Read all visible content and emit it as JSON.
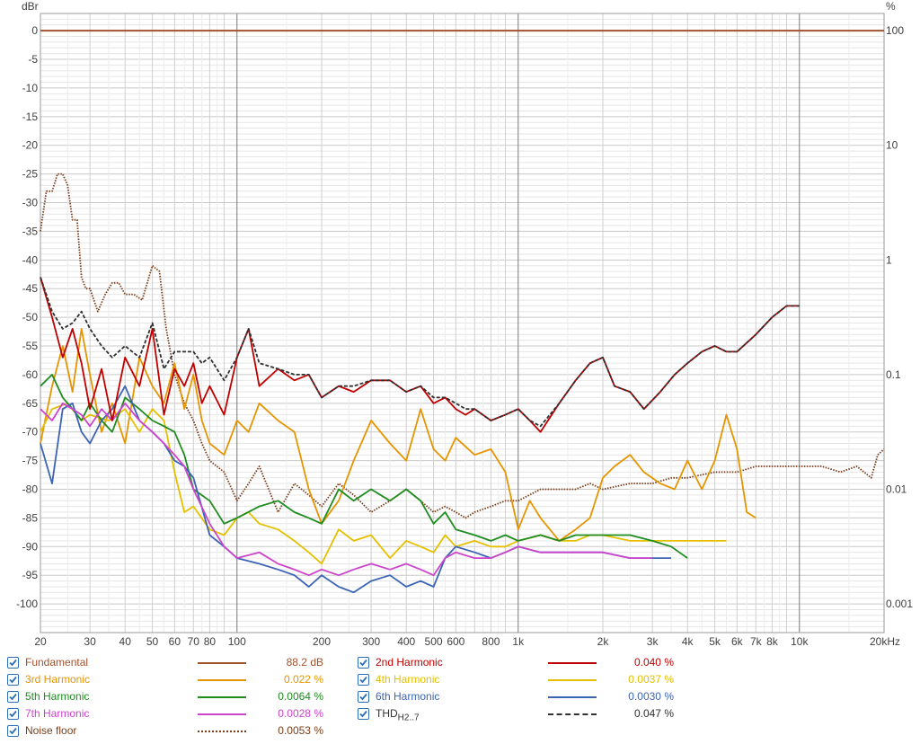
{
  "chart_data": {
    "type": "line",
    "xscale": "log",
    "xlim": [
      20,
      20000
    ],
    "ylim": [
      -105,
      3
    ],
    "y_unit_left": "dBr",
    "y_unit_right": "%",
    "x_tick_labels": [
      {
        "v": 20,
        "t": "20"
      },
      {
        "v": 30,
        "t": "30"
      },
      {
        "v": 40,
        "t": "40"
      },
      {
        "v": 50,
        "t": "50"
      },
      {
        "v": 60,
        "t": "60"
      },
      {
        "v": 70,
        "t": "70"
      },
      {
        "v": 80,
        "t": "80"
      },
      {
        "v": 100,
        "t": "100"
      },
      {
        "v": 200,
        "t": "200"
      },
      {
        "v": 300,
        "t": "300"
      },
      {
        "v": 400,
        "t": "400"
      },
      {
        "v": 500,
        "t": "500"
      },
      {
        "v": 600,
        "t": "600"
      },
      {
        "v": 800,
        "t": "800"
      },
      {
        "v": 1000,
        "t": "1k"
      },
      {
        "v": 2000,
        "t": "2k"
      },
      {
        "v": 3000,
        "t": "3k"
      },
      {
        "v": 4000,
        "t": "4k"
      },
      {
        "v": 5000,
        "t": "5k"
      },
      {
        "v": 6000,
        "t": "6k"
      },
      {
        "v": 7000,
        "t": "7k"
      },
      {
        "v": 8000,
        "t": "8k"
      },
      {
        "v": 10000,
        "t": "10k"
      },
      {
        "v": 20000,
        "t": "20kHz"
      }
    ],
    "y_ticks_left": [
      0,
      -5,
      -10,
      -15,
      -20,
      -25,
      -30,
      -35,
      -40,
      -45,
      -50,
      -55,
      -60,
      -65,
      -70,
      -75,
      -80,
      -85,
      -90,
      -95,
      -100
    ],
    "y_ticks_right": [
      {
        "v": 0,
        "t": "100"
      },
      {
        "v": -20,
        "t": "10"
      },
      {
        "v": -40,
        "t": "1"
      },
      {
        "v": -60,
        "t": "0.1"
      },
      {
        "v": -80,
        "t": "0.01"
      },
      {
        "v": -100,
        "t": "0.001"
      }
    ],
    "series": [
      {
        "name": "Fundamental",
        "color": "#a0522d",
        "dash": "solid",
        "value": "88.2 dB",
        "label_color": "#a0522d",
        "x": [
          20,
          20000
        ],
        "y": [
          0,
          0
        ]
      },
      {
        "name": "2nd Harmonic",
        "color": "#c00000",
        "dash": "solid",
        "value": "0.040 %",
        "label_color": "#c00000",
        "x": [
          20,
          22,
          24,
          26,
          28,
          30,
          33,
          36,
          40,
          45,
          50,
          55,
          60,
          65,
          70,
          75,
          80,
          90,
          100,
          110,
          120,
          140,
          160,
          180,
          200,
          230,
          260,
          300,
          350,
          400,
          450,
          500,
          550,
          600,
          650,
          700,
          800,
          900,
          1000,
          1100,
          1200,
          1400,
          1600,
          1800,
          2000,
          2200,
          2500,
          2800,
          3200,
          3600,
          4000,
          4500,
          5000,
          5500,
          6000,
          7000,
          8000,
          9000,
          10000
        ],
        "y": [
          -43,
          -50,
          -57,
          -52,
          -58,
          -66,
          -59,
          -68,
          -57,
          -62,
          -52,
          -67,
          -59,
          -62,
          -58,
          -65,
          -62,
          -67,
          -57,
          -52,
          -62,
          -59,
          -61,
          -60,
          -64,
          -62,
          -63,
          -61,
          -61,
          -63,
          -62,
          -65,
          -64,
          -66,
          -67,
          -66,
          -68,
          -67,
          -66,
          -68,
          -70,
          -65,
          -61,
          -58,
          -57,
          -62,
          -63,
          -66,
          -63,
          -60,
          -58,
          -56,
          -55,
          -56,
          -56,
          -53,
          -50,
          -48,
          -48
        ]
      },
      {
        "name": "3rd Harmonic",
        "color": "#e69500",
        "dash": "solid",
        "value": "0.022 %",
        "label_color": "#e69500",
        "x": [
          20,
          22,
          24,
          26,
          28,
          30,
          33,
          36,
          40,
          45,
          50,
          55,
          60,
          65,
          70,
          75,
          80,
          90,
          100,
          110,
          120,
          140,
          160,
          180,
          200,
          230,
          260,
          300,
          350,
          400,
          450,
          500,
          550,
          600,
          700,
          800,
          900,
          1000,
          1100,
          1200,
          1400,
          1600,
          1800,
          2000,
          2200,
          2500,
          2800,
          3200,
          3600,
          4000,
          4500,
          5000,
          5500,
          6000,
          6500,
          7000
        ],
        "y": [
          -72,
          -62,
          -55,
          -63,
          -52,
          -60,
          -70,
          -65,
          -72,
          -57,
          -62,
          -65,
          -58,
          -66,
          -60,
          -68,
          -72,
          -74,
          -68,
          -70,
          -65,
          -68,
          -70,
          -80,
          -86,
          -82,
          -75,
          -68,
          -72,
          -75,
          -66,
          -73,
          -75,
          -71,
          -74,
          -73,
          -77,
          -87,
          -82,
          -85,
          -89,
          -87,
          -85,
          -78,
          -76,
          -74,
          -77,
          -79,
          -80,
          -75,
          -80,
          -75,
          -67,
          -73,
          -84,
          -85
        ]
      },
      {
        "name": "4th Harmonic",
        "color": "#e6c000",
        "dash": "solid",
        "value": "0.0037 %",
        "label_color": "#e6c000",
        "x": [
          20,
          22,
          25,
          28,
          30,
          35,
          40,
          45,
          50,
          55,
          60,
          65,
          70,
          80,
          90,
          100,
          110,
          120,
          140,
          160,
          180,
          200,
          230,
          260,
          300,
          350,
          400,
          450,
          500,
          550,
          600,
          700,
          800,
          900,
          1000,
          1200,
          1400,
          1600,
          1800,
          2000,
          2500,
          3000,
          3500,
          4000,
          4500,
          5000,
          5500
        ],
        "y": [
          -70,
          -66,
          -65,
          -68,
          -67,
          -68,
          -66,
          -70,
          -66,
          -68,
          -77,
          -84,
          -83,
          -87,
          -88,
          -85,
          -84,
          -86,
          -87,
          -89,
          -91,
          -93,
          -87,
          -89,
          -88,
          -92,
          -89,
          -90,
          -91,
          -88,
          -90,
          -89,
          -90,
          -90,
          -89,
          -88,
          -89,
          -89,
          -88,
          -88,
          -89,
          -89,
          -89,
          -89,
          -89,
          -89,
          -89
        ]
      },
      {
        "name": "5th Harmonic",
        "color": "#1e8c1e",
        "dash": "solid",
        "value": "0.0064 %",
        "label_color": "#1e8c1e",
        "x": [
          20,
          22,
          24,
          26,
          28,
          30,
          33,
          36,
          40,
          45,
          50,
          55,
          60,
          65,
          70,
          80,
          90,
          100,
          120,
          140,
          160,
          180,
          200,
          230,
          260,
          300,
          350,
          400,
          450,
          500,
          550,
          600,
          700,
          800,
          900,
          1000,
          1200,
          1400,
          1600,
          2000,
          2500,
          3000,
          3500,
          4000
        ],
        "y": [
          -62,
          -60,
          -64,
          -66,
          -68,
          -65,
          -68,
          -70,
          -64,
          -66,
          -68,
          -69,
          -70,
          -74,
          -80,
          -82,
          -86,
          -85,
          -83,
          -82,
          -84,
          -85,
          -86,
          -80,
          -82,
          -80,
          -82,
          -80,
          -82,
          -86,
          -84,
          -87,
          -88,
          -89,
          -88,
          -89,
          -88,
          -89,
          -88,
          -88,
          -88,
          -89,
          -90,
          -92
        ]
      },
      {
        "name": "6th Harmonic",
        "color": "#3c64b4",
        "dash": "solid",
        "value": "0.0030 %",
        "label_color": "#3c64b4",
        "x": [
          20,
          22,
          24,
          26,
          28,
          30,
          33,
          36,
          40,
          45,
          50,
          55,
          60,
          65,
          70,
          80,
          90,
          100,
          120,
          140,
          160,
          180,
          200,
          230,
          260,
          300,
          350,
          400,
          450,
          500,
          550,
          600,
          700,
          800,
          900,
          1000,
          1200,
          1400,
          1600,
          2000,
          2500,
          3000,
          3500
        ],
        "y": [
          -72,
          -79,
          -66,
          -65,
          -70,
          -72,
          -68,
          -66,
          -62,
          -68,
          -70,
          -72,
          -75,
          -76,
          -78,
          -88,
          -90,
          -92,
          -93,
          -94,
          -95,
          -97,
          -95,
          -97,
          -98,
          -96,
          -95,
          -97,
          -96,
          -97,
          -92,
          -90,
          -91,
          -92,
          -91,
          -90,
          -91,
          -91,
          -91,
          -91,
          -92,
          -92,
          -92
        ]
      },
      {
        "name": "7th Harmonic",
        "color": "#cc44cc",
        "dash": "solid",
        "value": "0.0028 %",
        "label_color": "#cc44cc",
        "x": [
          20,
          22,
          24,
          26,
          28,
          30,
          33,
          36,
          40,
          45,
          50,
          55,
          60,
          65,
          70,
          80,
          90,
          100,
          120,
          140,
          160,
          180,
          200,
          230,
          260,
          300,
          350,
          400,
          450,
          500,
          550,
          600,
          700,
          800,
          900,
          1000,
          1200,
          1400,
          1600,
          2000,
          2500,
          3000
        ],
        "y": [
          -66,
          -68,
          -65,
          -66,
          -67,
          -69,
          -66,
          -68,
          -65,
          -68,
          -70,
          -72,
          -74,
          -76,
          -80,
          -86,
          -90,
          -92,
          -91,
          -93,
          -94,
          -95,
          -94,
          -95,
          -94,
          -93,
          -94,
          -93,
          -94,
          -95,
          -92,
          -91,
          -92,
          -92,
          -91,
          -90,
          -91,
          -91,
          -91,
          -91,
          -92,
          -92
        ]
      },
      {
        "name": "THD",
        "name_sub": "H2..7",
        "color": "#303030",
        "dash": "4 2",
        "value": "0.047 %",
        "label_color": "#303030",
        "x": [
          20,
          22,
          24,
          26,
          28,
          30,
          33,
          36,
          40,
          45,
          50,
          55,
          60,
          65,
          70,
          75,
          80,
          90,
          100,
          110,
          120,
          140,
          160,
          180,
          200,
          230,
          260,
          300,
          350,
          400,
          450,
          500,
          550,
          600,
          650,
          700,
          800,
          900,
          1000,
          1100,
          1200,
          1400,
          1600,
          1800,
          2000,
          2200,
          2500,
          2800,
          3200,
          3600,
          4000,
          4500,
          5000,
          5500,
          6000,
          7000,
          8000,
          9000,
          10000
        ],
        "y": [
          -43,
          -49,
          -52,
          -51,
          -49,
          -52,
          -55,
          -57,
          -55,
          -57,
          -51,
          -59,
          -56,
          -56,
          -56,
          -58,
          -57,
          -61,
          -57,
          -52,
          -58,
          -59,
          -60,
          -60,
          -64,
          -62,
          -62,
          -61,
          -61,
          -63,
          -62,
          -64,
          -64,
          -65,
          -66,
          -66,
          -68,
          -67,
          -66,
          -68,
          -69,
          -65,
          -61,
          -58,
          -57,
          -62,
          -63,
          -66,
          -63,
          -60,
          -58,
          -56,
          -55,
          -56,
          -56,
          -53,
          -50,
          -48,
          -48
        ]
      },
      {
        "name": "Noise floor",
        "color": "#7a3d1a",
        "dash": "1.5 1.5",
        "value": "0.0053 %",
        "label_color": "#7a3d1a",
        "x": [
          20,
          21,
          22,
          23,
          24,
          25,
          26,
          27,
          28,
          29,
          30,
          32,
          34,
          36,
          38,
          40,
          43,
          46,
          50,
          53,
          56,
          60,
          65,
          70,
          75,
          80,
          90,
          100,
          110,
          120,
          140,
          160,
          180,
          200,
          230,
          260,
          300,
          350,
          400,
          450,
          500,
          550,
          600,
          650,
          700,
          800,
          900,
          1000,
          1200,
          1400,
          1600,
          1800,
          2000,
          2500,
          3000,
          3500,
          4000,
          5000,
          6000,
          7000,
          8000,
          10000,
          12000,
          14000,
          16000,
          18000,
          19000,
          20000
        ],
        "y": [
          -35,
          -28,
          -28,
          -25,
          -25,
          -27,
          -33,
          -33,
          -43,
          -45,
          -45,
          -49,
          -46,
          -44,
          -44,
          -46,
          -46,
          -47,
          -41,
          -42,
          -52,
          -60,
          -65,
          -68,
          -72,
          -75,
          -77,
          -82,
          -79,
          -76,
          -84,
          -79,
          -81,
          -83,
          -79,
          -81,
          -84,
          -82,
          -80,
          -82,
          -84,
          -83,
          -84,
          -85,
          -84,
          -83,
          -82,
          -82,
          -80,
          -80,
          -80,
          -79,
          -80,
          -79,
          -79,
          -78,
          -78,
          -77,
          -77,
          -76,
          -76,
          -76,
          -76,
          -77,
          -76,
          -78,
          -74,
          -73
        ]
      }
    ]
  }
}
